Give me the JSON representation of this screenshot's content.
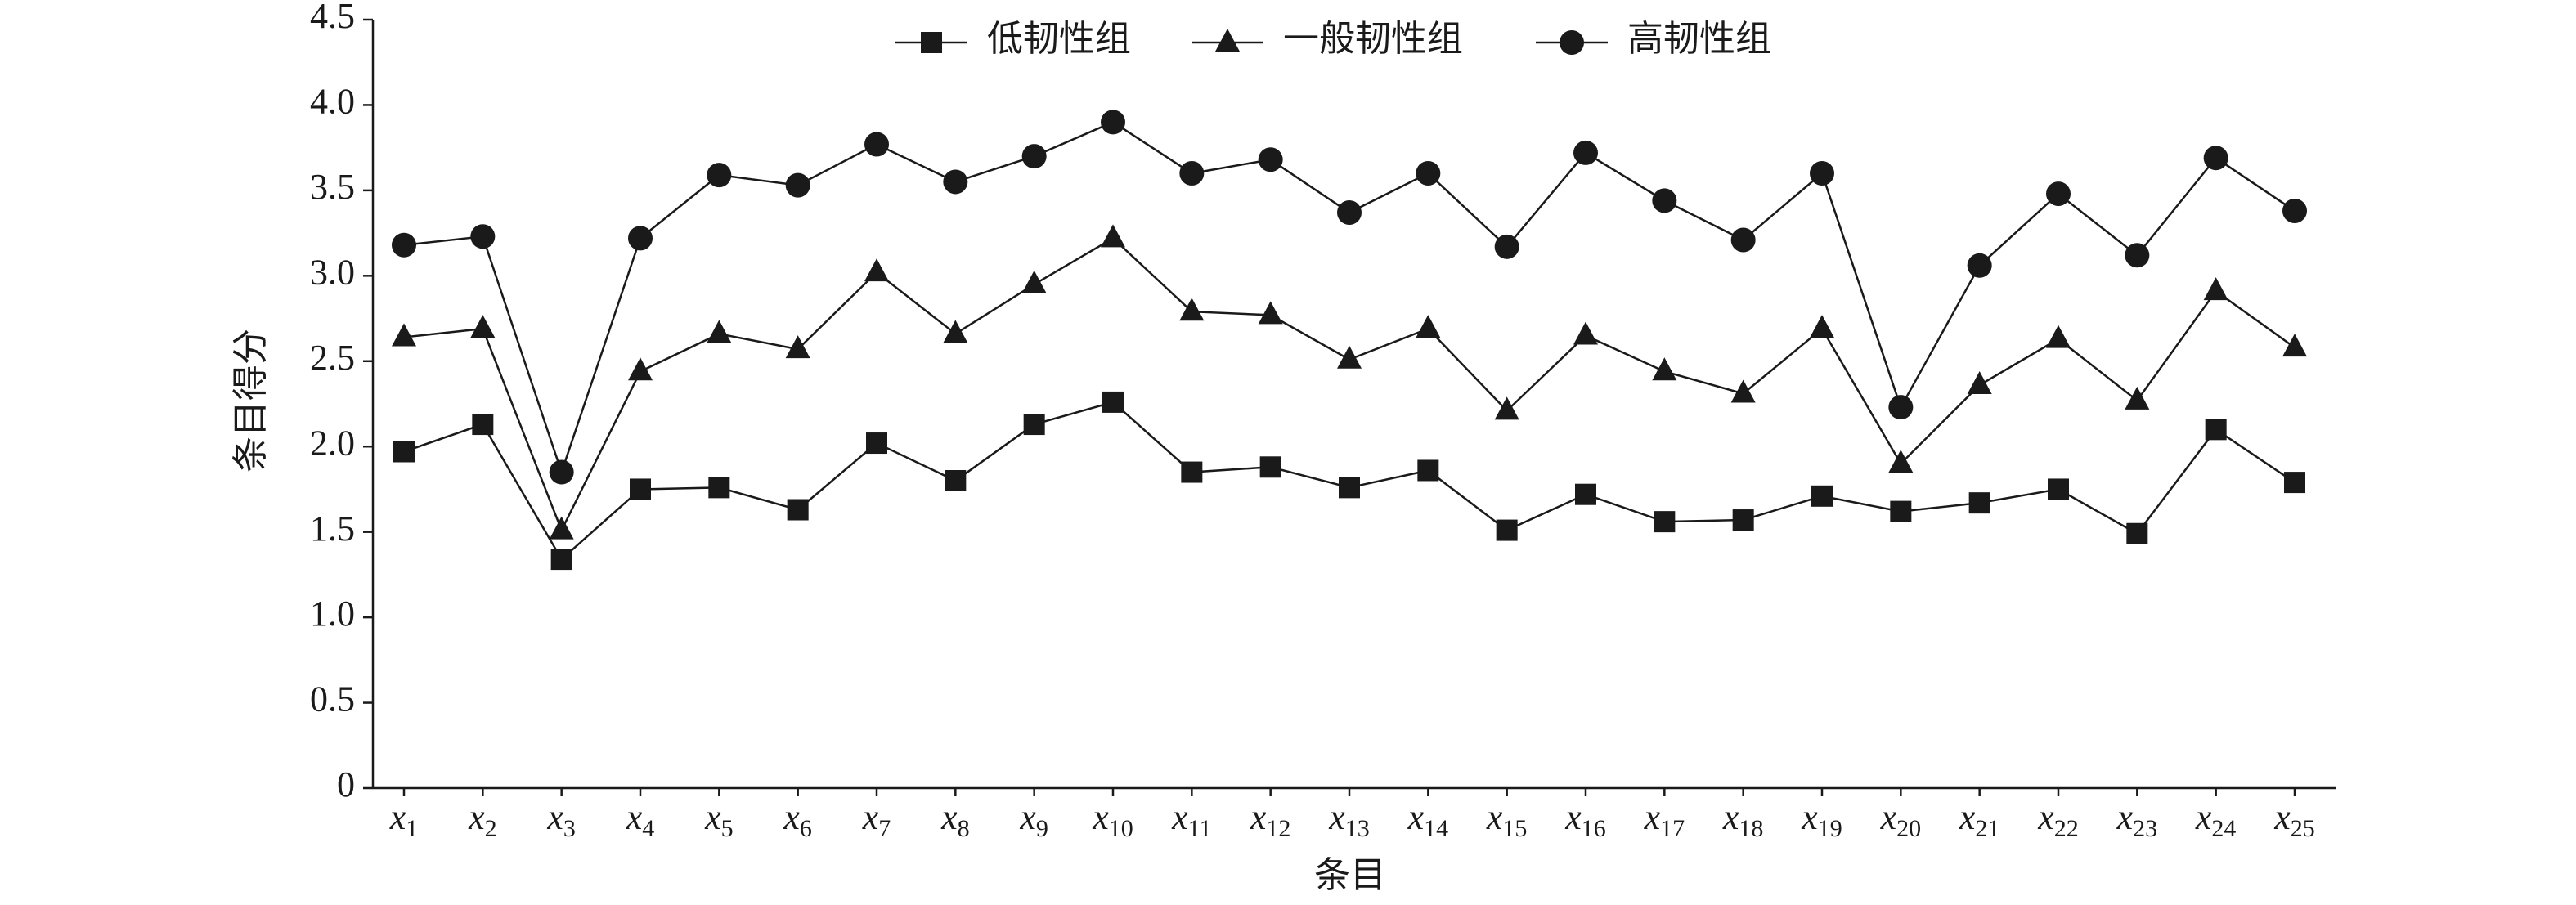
{
  "chart_data": {
    "type": "line",
    "x_label": "条目",
    "y_label": "条目得分",
    "categories": [
      "x1",
      "x2",
      "x3",
      "x4",
      "x5",
      "x6",
      "x7",
      "x8",
      "x9",
      "x10",
      "x11",
      "x12",
      "x13",
      "x14",
      "x15",
      "x16",
      "x17",
      "x18",
      "x19",
      "x20",
      "x21",
      "x22",
      "x23",
      "x24",
      "x25"
    ],
    "series": [
      {
        "name": "低韧性组",
        "color": "#1a1a1a",
        "marker": "square",
        "values": [
          1.97,
          2.13,
          1.34,
          1.75,
          1.76,
          1.63,
          2.02,
          1.8,
          2.13,
          2.26,
          1.85,
          1.88,
          1.76,
          1.86,
          1.51,
          1.72,
          1.56,
          1.57,
          1.71,
          1.62,
          1.67,
          1.75,
          1.49,
          2.1,
          1.79
        ]
      },
      {
        "name": "一般韧性组",
        "color": "#1a1a1a",
        "marker": "triangle",
        "values": [
          2.64,
          2.69,
          1.51,
          2.44,
          2.66,
          2.57,
          3.02,
          2.66,
          2.95,
          3.22,
          2.79,
          2.77,
          2.51,
          2.69,
          2.21,
          2.65,
          2.44,
          2.31,
          2.69,
          1.9,
          2.36,
          2.63,
          2.27,
          2.91,
          2.58
        ]
      },
      {
        "name": "高韧性组",
        "color": "#1a1a1a",
        "marker": "circle",
        "values": [
          3.18,
          3.23,
          1.85,
          3.22,
          3.59,
          3.53,
          3.77,
          3.55,
          3.7,
          3.9,
          3.6,
          3.68,
          3.37,
          3.6,
          3.17,
          3.72,
          3.44,
          3.21,
          3.6,
          2.23,
          3.06,
          3.48,
          3.12,
          3.69,
          3.38
        ]
      }
    ],
    "ylim": [
      0,
      4.5
    ],
    "yticks": [
      0,
      0.5,
      {
        "value": 1,
        "label": "1.0"
      },
      1.5,
      {
        "value": 2,
        "label": "2.0"
      },
      2.5,
      {
        "value": 3,
        "label": "3.0"
      },
      3.5,
      {
        "value": 4,
        "label": "4.0"
      },
      4.5
    ],
    "legend": "top"
  }
}
